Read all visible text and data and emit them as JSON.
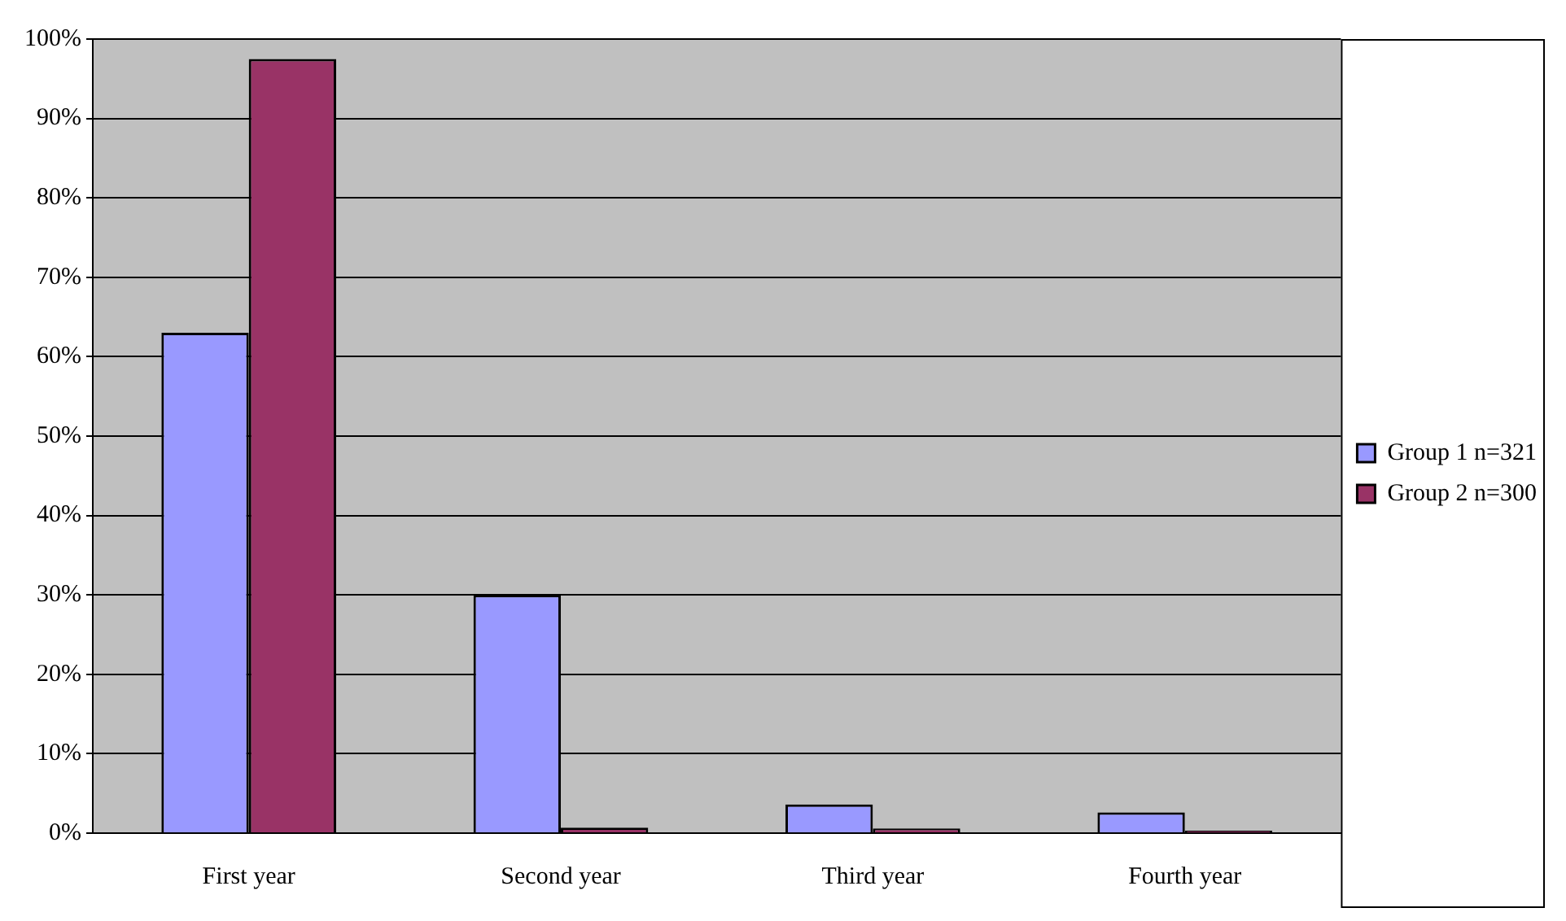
{
  "chart_data": {
    "type": "bar",
    "categories": [
      "First year",
      "Second year",
      "Third year",
      "Fourth year"
    ],
    "series": [
      {
        "name": "Group 1 n=321",
        "color": "#9999ff",
        "values": [
          63,
          30,
          3.6,
          2.6
        ]
      },
      {
        "name": "Group 2 n=300",
        "color": "#993366",
        "values": [
          97.5,
          0.7,
          0.6,
          0.3
        ]
      }
    ],
    "ylim": [
      0,
      100
    ],
    "yticks": [
      {
        "value": 0,
        "label": "0%"
      },
      {
        "value": 10,
        "label": "10%"
      },
      {
        "value": 20,
        "label": "20%"
      },
      {
        "value": 30,
        "label": "30%"
      },
      {
        "value": 40,
        "label": "40%"
      },
      {
        "value": 50,
        "label": "50%"
      },
      {
        "value": 60,
        "label": "60%"
      },
      {
        "value": 70,
        "label": "70%"
      },
      {
        "value": 80,
        "label": "80%"
      },
      {
        "value": 90,
        "label": "90%"
      },
      {
        "value": 100,
        "label": "100%"
      }
    ],
    "grid": "y",
    "legend": "right"
  }
}
